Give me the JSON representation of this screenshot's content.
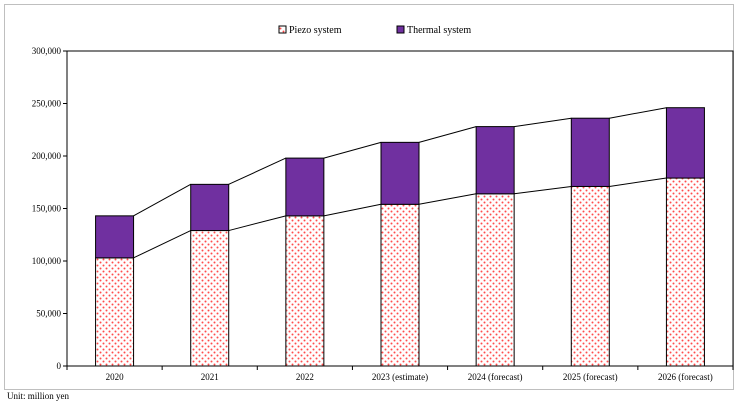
{
  "chart_data": {
    "type": "bar",
    "stacked": true,
    "categories": [
      "2020",
      "2021",
      "2022",
      "2023 (estimate)",
      "2024 (forecast)",
      "2025 (forecast)",
      "2026 (forecast)"
    ],
    "series": [
      {
        "name": "Piezo system",
        "values": [
          103000,
          129000,
          143000,
          154000,
          164000,
          171000,
          179000
        ],
        "color": "#ff4d4d",
        "pattern": "dots"
      },
      {
        "name": "Thermal system",
        "values": [
          40000,
          44000,
          55000,
          59000,
          64000,
          65000,
          67000
        ],
        "color": "#7030a0",
        "pattern": "solid"
      }
    ],
    "ylim": [
      0,
      300000
    ],
    "yticks": [
      0,
      50000,
      100000,
      150000,
      200000,
      250000,
      300000
    ],
    "ytick_labels": [
      "0",
      "50,000",
      "100,000",
      "150,000",
      "200,000",
      "250,000",
      "300,000"
    ],
    "connector_lines": true,
    "grid": false,
    "legend_position": "top-center",
    "unit_note": "Unit: million yen"
  }
}
